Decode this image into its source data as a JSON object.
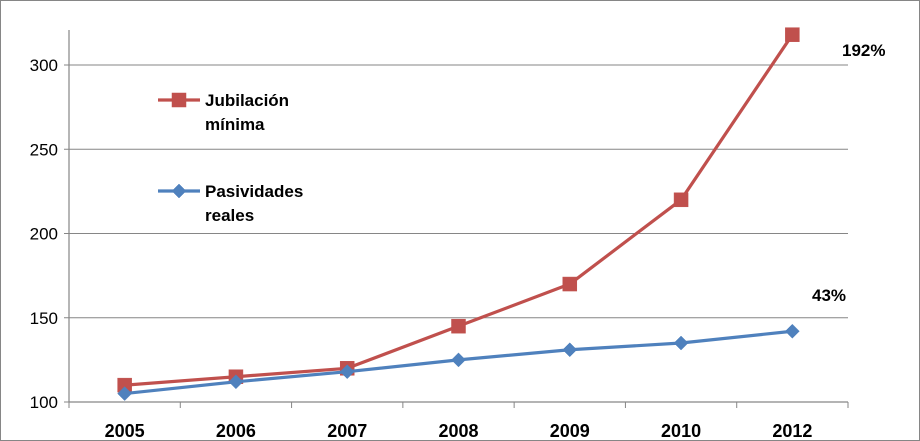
{
  "chart_data": {
    "type": "line",
    "categories": [
      "2005",
      "2006",
      "2007",
      "2008",
      "2009",
      "2010",
      "2012"
    ],
    "series": [
      {
        "name": "Jubilación mínima",
        "name_lines": [
          "Jubilación",
          "mínima"
        ],
        "color": "#c0504d",
        "marker": "square",
        "values": [
          110,
          115,
          120,
          145,
          170,
          220,
          318
        ]
      },
      {
        "name": "Pasividades reales",
        "name_lines": [
          "Pasividades",
          "reales"
        ],
        "color": "#4f81bd",
        "marker": "diamond",
        "values": [
          105,
          112,
          118,
          125,
          131,
          135,
          142
        ]
      }
    ],
    "yticks": [
      100,
      150,
      200,
      250,
      300
    ],
    "ylim": [
      100,
      320
    ],
    "grid": "horizontal",
    "legend_position": "top-left",
    "annotations": [
      {
        "text": "192%",
        "series": 0
      },
      {
        "text": "43%",
        "series": 1
      }
    ],
    "title": "",
    "xlabel": "",
    "ylabel": ""
  }
}
